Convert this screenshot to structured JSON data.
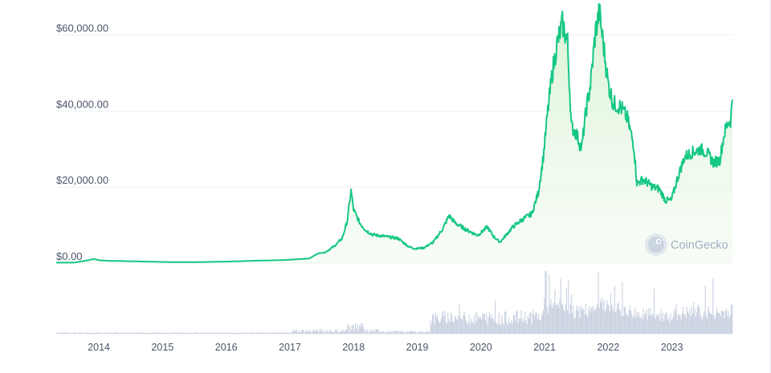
{
  "chart_data": {
    "type": "area",
    "title": "",
    "ylabel": "",
    "xlabel": "",
    "ylim": [
      0,
      65000
    ],
    "xlim": [
      2013.33,
      2023.95
    ],
    "y_ticks": [
      "$0.00",
      "$20,000.00",
      "$40,000.00",
      "$60,000.00"
    ],
    "y_tick_values": [
      0,
      20000,
      40000,
      60000
    ],
    "x_ticks": [
      "2014",
      "2015",
      "2016",
      "2017",
      "2018",
      "2019",
      "2020",
      "2021",
      "2022",
      "2023"
    ],
    "x_tick_values": [
      2014,
      2015,
      2016,
      2017,
      2018,
      2019,
      2020,
      2021,
      2022,
      2023
    ],
    "grid": true,
    "line_color": "#16c784",
    "fill_color": "#e8f7e4",
    "volume_color": "#c9d1e0",
    "series": [
      {
        "x": [
          2013.33,
          2013.6,
          2013.85,
          2013.92,
          2014.0,
          2014.15,
          2014.5,
          2015.0,
          2015.5,
          2016.0,
          2016.5,
          2016.9,
          2017.1,
          2017.3,
          2017.45,
          2017.55,
          2017.7,
          2017.82,
          2017.9,
          2017.96,
          2018.0,
          2018.1,
          2018.2,
          2018.3,
          2018.5,
          2018.7,
          2018.85,
          2018.95,
          2019.1,
          2019.25,
          2019.4,
          2019.5,
          2019.6,
          2019.8,
          2019.95,
          2020.1,
          2020.2,
          2020.3,
          2020.5,
          2020.65,
          2020.8,
          2020.9,
          2020.98,
          2021.05,
          2021.12,
          2021.2,
          2021.28,
          2021.36,
          2021.42,
          2021.5,
          2021.58,
          2021.65,
          2021.72,
          2021.8,
          2021.86,
          2021.92,
          2022.0,
          2022.08,
          2022.2,
          2022.3,
          2022.4,
          2022.45,
          2022.55,
          2022.7,
          2022.8,
          2022.9,
          2022.99,
          2023.1,
          2023.2,
          2023.3,
          2023.45,
          2023.55,
          2023.65,
          2023.75,
          2023.82,
          2023.88,
          2023.92,
          2023.95
        ],
        "y": [
          120,
          120,
          800,
          1100,
          750,
          600,
          500,
          300,
          240,
          400,
          650,
          800,
          1000,
          1200,
          2600,
          2800,
          4500,
          6500,
          11000,
          19000,
          14000,
          10500,
          8500,
          7500,
          7000,
          6500,
          4500,
          3800,
          4000,
          5500,
          9000,
          12500,
          10500,
          8500,
          7300,
          9500,
          7000,
          5500,
          9500,
          11500,
          13000,
          18500,
          28000,
          40000,
          50000,
          58000,
          63000,
          58000,
          36000,
          34000,
          30000,
          40000,
          47000,
          61000,
          66000,
          58000,
          47000,
          42000,
          41000,
          38000,
          31000,
          21000,
          22000,
          20000,
          19500,
          16500,
          16500,
          23000,
          28000,
          29000,
          30000,
          29000,
          26500,
          27000,
          34000,
          37000,
          37500,
          43000
        ]
      }
    ],
    "watermark": "CoinGecko"
  }
}
